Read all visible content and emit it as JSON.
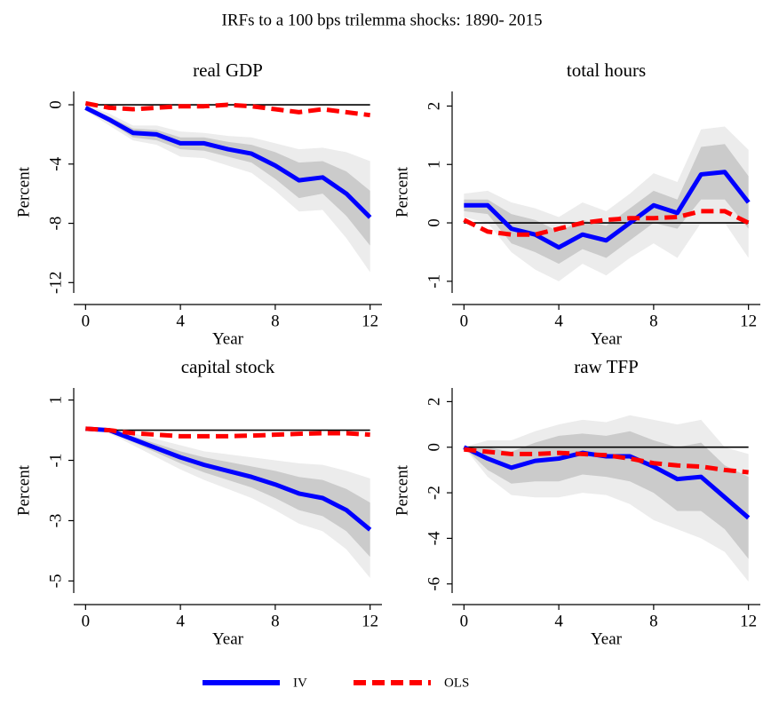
{
  "title": "IRFs to a 100 bps trilemma shocks: 1890- 2015",
  "chart_data": [
    {
      "type": "line",
      "title": "real GDP",
      "x_label": "Year",
      "y_label": "Percent",
      "x": [
        0,
        1,
        2,
        3,
        4,
        5,
        6,
        7,
        8,
        9,
        10,
        11,
        12
      ],
      "xlim": [
        -0.5,
        12.5
      ],
      "xticks": [
        0,
        4,
        8,
        12
      ],
      "ylim": [
        -12.7,
        0.9
      ],
      "yticks": [
        0,
        -4,
        -8,
        -12
      ],
      "reference_line": 0,
      "bands": [
        {
          "color": "#ececec",
          "upper": [
            0,
            -0.6,
            -1.4,
            -1.4,
            -1.8,
            -1.9,
            -2.1,
            -2.2,
            -2.6,
            -3,
            -2.9,
            -3.2,
            -3.8
          ],
          "lower": [
            -0.4,
            -1.4,
            -2.4,
            -2.7,
            -3.5,
            -3.6,
            -4.1,
            -4.6,
            -5.8,
            -7.2,
            -7.1,
            -9,
            -11.3
          ]
        },
        {
          "color": "#cbcbcb",
          "upper": [
            -0.1,
            -0.8,
            -1.6,
            -1.7,
            -2.2,
            -2.2,
            -2.5,
            -2.7,
            -3.2,
            -3.9,
            -3.8,
            -4.5,
            -5.8
          ],
          "lower": [
            -0.3,
            -1.2,
            -2.2,
            -2.4,
            -3.0,
            -3.1,
            -3.5,
            -3.9,
            -5,
            -6.3,
            -6,
            -7.5,
            -9.5
          ]
        }
      ],
      "series": [
        {
          "name": "IV",
          "color": "#0000ff",
          "values": [
            -0.2,
            -1,
            -1.9,
            -2,
            -2.6,
            -2.6,
            -3,
            -3.3,
            -4.1,
            -5.1,
            -4.9,
            -6,
            -7.6
          ]
        },
        {
          "name": "OLS",
          "color": "#ff0000",
          "values": [
            0.1,
            -0.2,
            -0.3,
            -0.2,
            -0.1,
            -0.1,
            0,
            -0.1,
            -0.3,
            -0.5,
            -0.3,
            -0.5,
            -0.7
          ]
        }
      ]
    },
    {
      "type": "line",
      "title": "total hours",
      "x_label": "Year",
      "y_label": "Percent",
      "x": [
        0,
        1,
        2,
        3,
        4,
        5,
        6,
        7,
        8,
        9,
        10,
        11,
        12
      ],
      "xlim": [
        -0.5,
        12.5
      ],
      "xticks": [
        0,
        4,
        8,
        12
      ],
      "ylim": [
        -1.2,
        2.25
      ],
      "yticks": [
        2,
        1,
        0,
        -1
      ],
      "reference_line": 0,
      "bands": [
        {
          "color": "#ececec",
          "upper": [
            0.5,
            0.55,
            0.35,
            0.25,
            0.1,
            0.35,
            0.2,
            0.5,
            0.85,
            0.7,
            1.6,
            1.65,
            1.25
          ],
          "lower": [
            0.1,
            0,
            -0.5,
            -0.8,
            -1.0,
            -0.7,
            -0.9,
            -0.6,
            -0.35,
            -0.6,
            0,
            0,
            -0.6
          ]
        },
        {
          "color": "#cbcbcb",
          "upper": [
            0.4,
            0.4,
            0.15,
            0.05,
            -0.15,
            0.05,
            -0.05,
            0.25,
            0.55,
            0.4,
            1.3,
            1.35,
            0.8
          ],
          "lower": [
            0.2,
            0.15,
            -0.35,
            -0.5,
            -0.7,
            -0.45,
            -0.6,
            -0.3,
            0,
            -0.1,
            0.4,
            0.4,
            -0.1
          ]
        }
      ],
      "series": [
        {
          "name": "IV",
          "color": "#0000ff",
          "values": [
            0.3,
            0.3,
            -0.1,
            -0.2,
            -0.42,
            -0.2,
            -0.3,
            0,
            0.3,
            0.17,
            0.83,
            0.87,
            0.35
          ]
        },
        {
          "name": "OLS",
          "color": "#ff0000",
          "values": [
            0.05,
            -0.15,
            -0.2,
            -0.2,
            -0.1,
            0,
            0.05,
            0.08,
            0.08,
            0.1,
            0.2,
            0.2,
            0
          ]
        }
      ]
    },
    {
      "type": "line",
      "title": "capital stock",
      "x_label": "Year",
      "y_label": "Percent",
      "x": [
        0,
        1,
        2,
        3,
        4,
        5,
        6,
        7,
        8,
        9,
        10,
        11,
        12
      ],
      "xlim": [
        -0.5,
        12.5
      ],
      "xticks": [
        0,
        4,
        8,
        12
      ],
      "ylim": [
        -5.4,
        1.4
      ],
      "yticks": [
        1,
        -1,
        -3,
        -5
      ],
      "reference_line": 0,
      "bands": [
        {
          "color": "#ececec",
          "upper": [
            0.05,
            0.05,
            -0.1,
            -0.3,
            -0.5,
            -0.7,
            -0.8,
            -0.9,
            -1.0,
            -1.1,
            -1.15,
            -1.35,
            -1.6
          ],
          "lower": [
            0.05,
            -0.1,
            -0.5,
            -0.9,
            -1.3,
            -1.65,
            -1.95,
            -2.25,
            -2.65,
            -3.1,
            -3.35,
            -3.95,
            -4.9
          ]
        },
        {
          "color": "#cbcbcb",
          "upper": [
            0.05,
            0.02,
            -0.2,
            -0.45,
            -0.7,
            -0.9,
            -1.05,
            -1.2,
            -1.35,
            -1.55,
            -1.65,
            -1.95,
            -2.4
          ],
          "lower": [
            0.05,
            -0.05,
            -0.4,
            -0.75,
            -1.1,
            -1.4,
            -1.65,
            -1.9,
            -2.25,
            -2.65,
            -2.85,
            -3.35,
            -4.2
          ]
        }
      ],
      "series": [
        {
          "name": "IV",
          "color": "#0000ff",
          "values": [
            0.05,
            0,
            -0.3,
            -0.6,
            -0.9,
            -1.15,
            -1.35,
            -1.55,
            -1.8,
            -2.1,
            -2.25,
            -2.65,
            -3.3
          ]
        },
        {
          "name": "OLS",
          "color": "#ff0000",
          "values": [
            0.05,
            0,
            -0.1,
            -0.15,
            -0.2,
            -0.2,
            -0.2,
            -0.18,
            -0.15,
            -0.12,
            -0.1,
            -0.1,
            -0.15
          ]
        }
      ]
    },
    {
      "type": "line",
      "title": "raw TFP",
      "x_label": "Year",
      "y_label": "Percent",
      "x": [
        0,
        1,
        2,
        3,
        4,
        5,
        6,
        7,
        8,
        9,
        10,
        11,
        12
      ],
      "xlim": [
        -0.5,
        12.5
      ],
      "xticks": [
        0,
        4,
        8,
        12
      ],
      "ylim": [
        -6.4,
        2.6
      ],
      "yticks": [
        2,
        0,
        -2,
        -4,
        -6
      ],
      "reference_line": 0,
      "bands": [
        {
          "color": "#ececec",
          "upper": [
            0,
            0.3,
            0.3,
            0.7,
            1.0,
            1.2,
            1.1,
            1.4,
            1.2,
            1,
            1.2,
            0,
            -0.3
          ],
          "lower": [
            0,
            -1.3,
            -2.1,
            -2.2,
            -2.2,
            -2,
            -2.1,
            -2.5,
            -3.2,
            -3.6,
            -4,
            -4.6,
            -5.9
          ]
        },
        {
          "color": "#cbcbcb",
          "upper": [
            0,
            0,
            -0.2,
            0.2,
            0.5,
            0.6,
            0.5,
            0.7,
            0.3,
            0,
            0.2,
            -0.8,
            -1.3
          ],
          "lower": [
            0,
            -1,
            -1.6,
            -1.5,
            -1.5,
            -1.2,
            -1.3,
            -1.5,
            -2,
            -2.8,
            -2.8,
            -3.6,
            -4.9
          ]
        }
      ],
      "series": [
        {
          "name": "IV",
          "color": "#0000ff",
          "values": [
            0,
            -0.5,
            -0.9,
            -0.6,
            -0.5,
            -0.25,
            -0.4,
            -0.4,
            -0.85,
            -1.4,
            -1.3,
            -2.2,
            -3.1
          ]
        },
        {
          "name": "OLS",
          "color": "#ff0000",
          "values": [
            -0.1,
            -0.2,
            -0.3,
            -0.3,
            -0.25,
            -0.3,
            -0.35,
            -0.5,
            -0.7,
            -0.8,
            -0.85,
            -1.0,
            -1.1
          ]
        }
      ]
    }
  ]
}
